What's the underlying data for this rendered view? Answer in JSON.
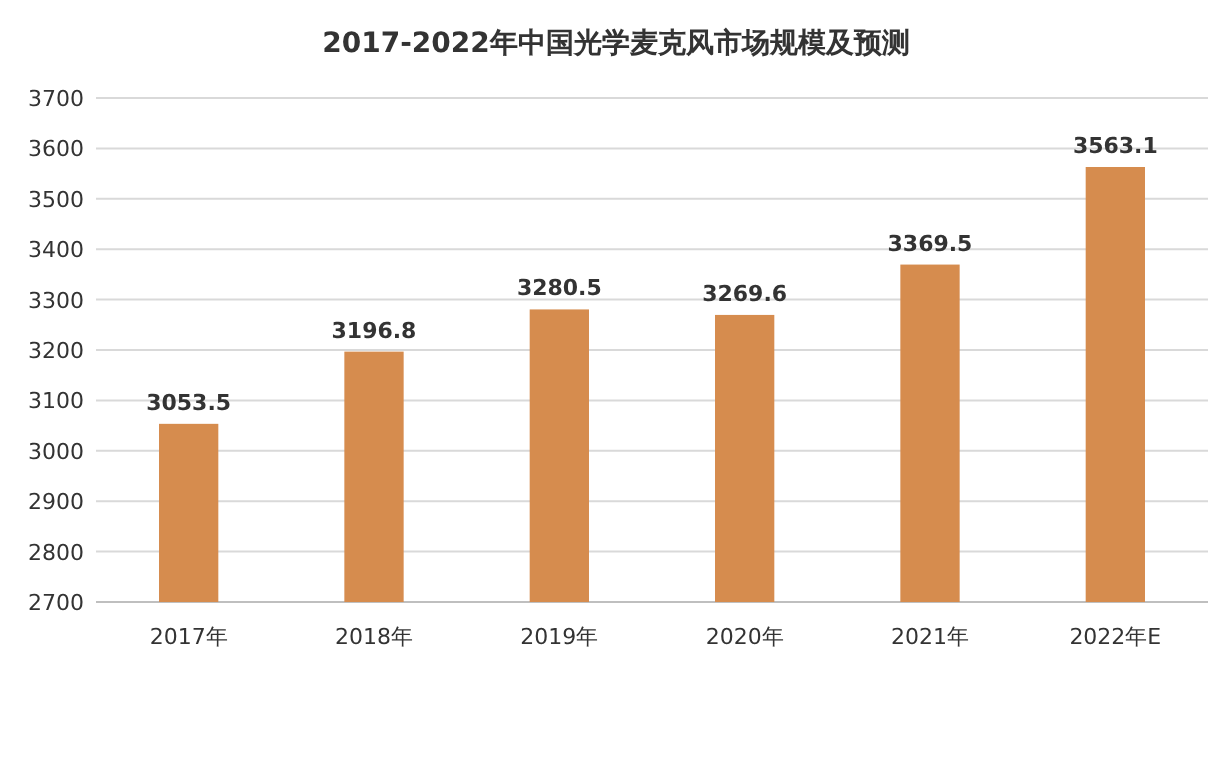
{
  "chart_data": {
    "type": "bar",
    "title": "2017-2022年中国光学麦克风市场规模及预测",
    "categories": [
      "2017年",
      "2018年",
      "2019年",
      "2020年",
      "2021年",
      "2022年E"
    ],
    "values": [
      3053.5,
      3196.8,
      3280.5,
      3269.6,
      3369.5,
      3563.1
    ],
    "color": "#d68c4e",
    "ylim": [
      2700,
      3700
    ],
    "yticks": [
      2700,
      2800,
      2900,
      3000,
      3100,
      3200,
      3300,
      3400,
      3500,
      3600,
      3700
    ],
    "grid": "y",
    "data_labels": true
  }
}
